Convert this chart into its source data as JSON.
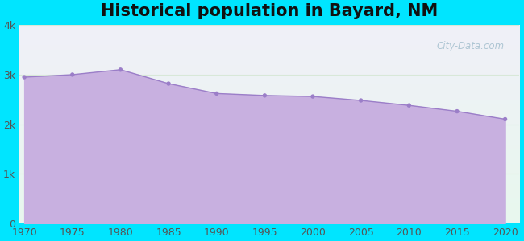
{
  "title": "Historical population in Bayard, NM",
  "background_color": "#00e5ff",
  "fill_color": "#c8b0e0",
  "line_color": "#9b7ec8",
  "marker_color": "#9b7ec8",
  "years": [
    1970,
    1975,
    1980,
    1985,
    1990,
    1995,
    2000,
    2005,
    2010,
    2015,
    2020
  ],
  "population": [
    2950,
    3000,
    3100,
    2820,
    2620,
    2580,
    2560,
    2480,
    2380,
    2260,
    2100
  ],
  "ylim": [
    0,
    4000
  ],
  "yticks": [
    0,
    1000,
    2000,
    3000,
    4000
  ],
  "ytick_labels": [
    "0",
    "1k",
    "2k",
    "3k",
    "4k"
  ],
  "xticks": [
    1970,
    1975,
    1980,
    1985,
    1990,
    1995,
    2000,
    2005,
    2010,
    2015,
    2020
  ],
  "watermark": "City-Data.com",
  "plot_bg_color_top": "#e8f8ee",
  "plot_bg_color_bottom": "#f0f0f8",
  "grid_color": "#d8e8d8",
  "title_fontsize": 15,
  "tick_fontsize": 9,
  "xlim_left": 1969.5,
  "xlim_right": 2021.5
}
